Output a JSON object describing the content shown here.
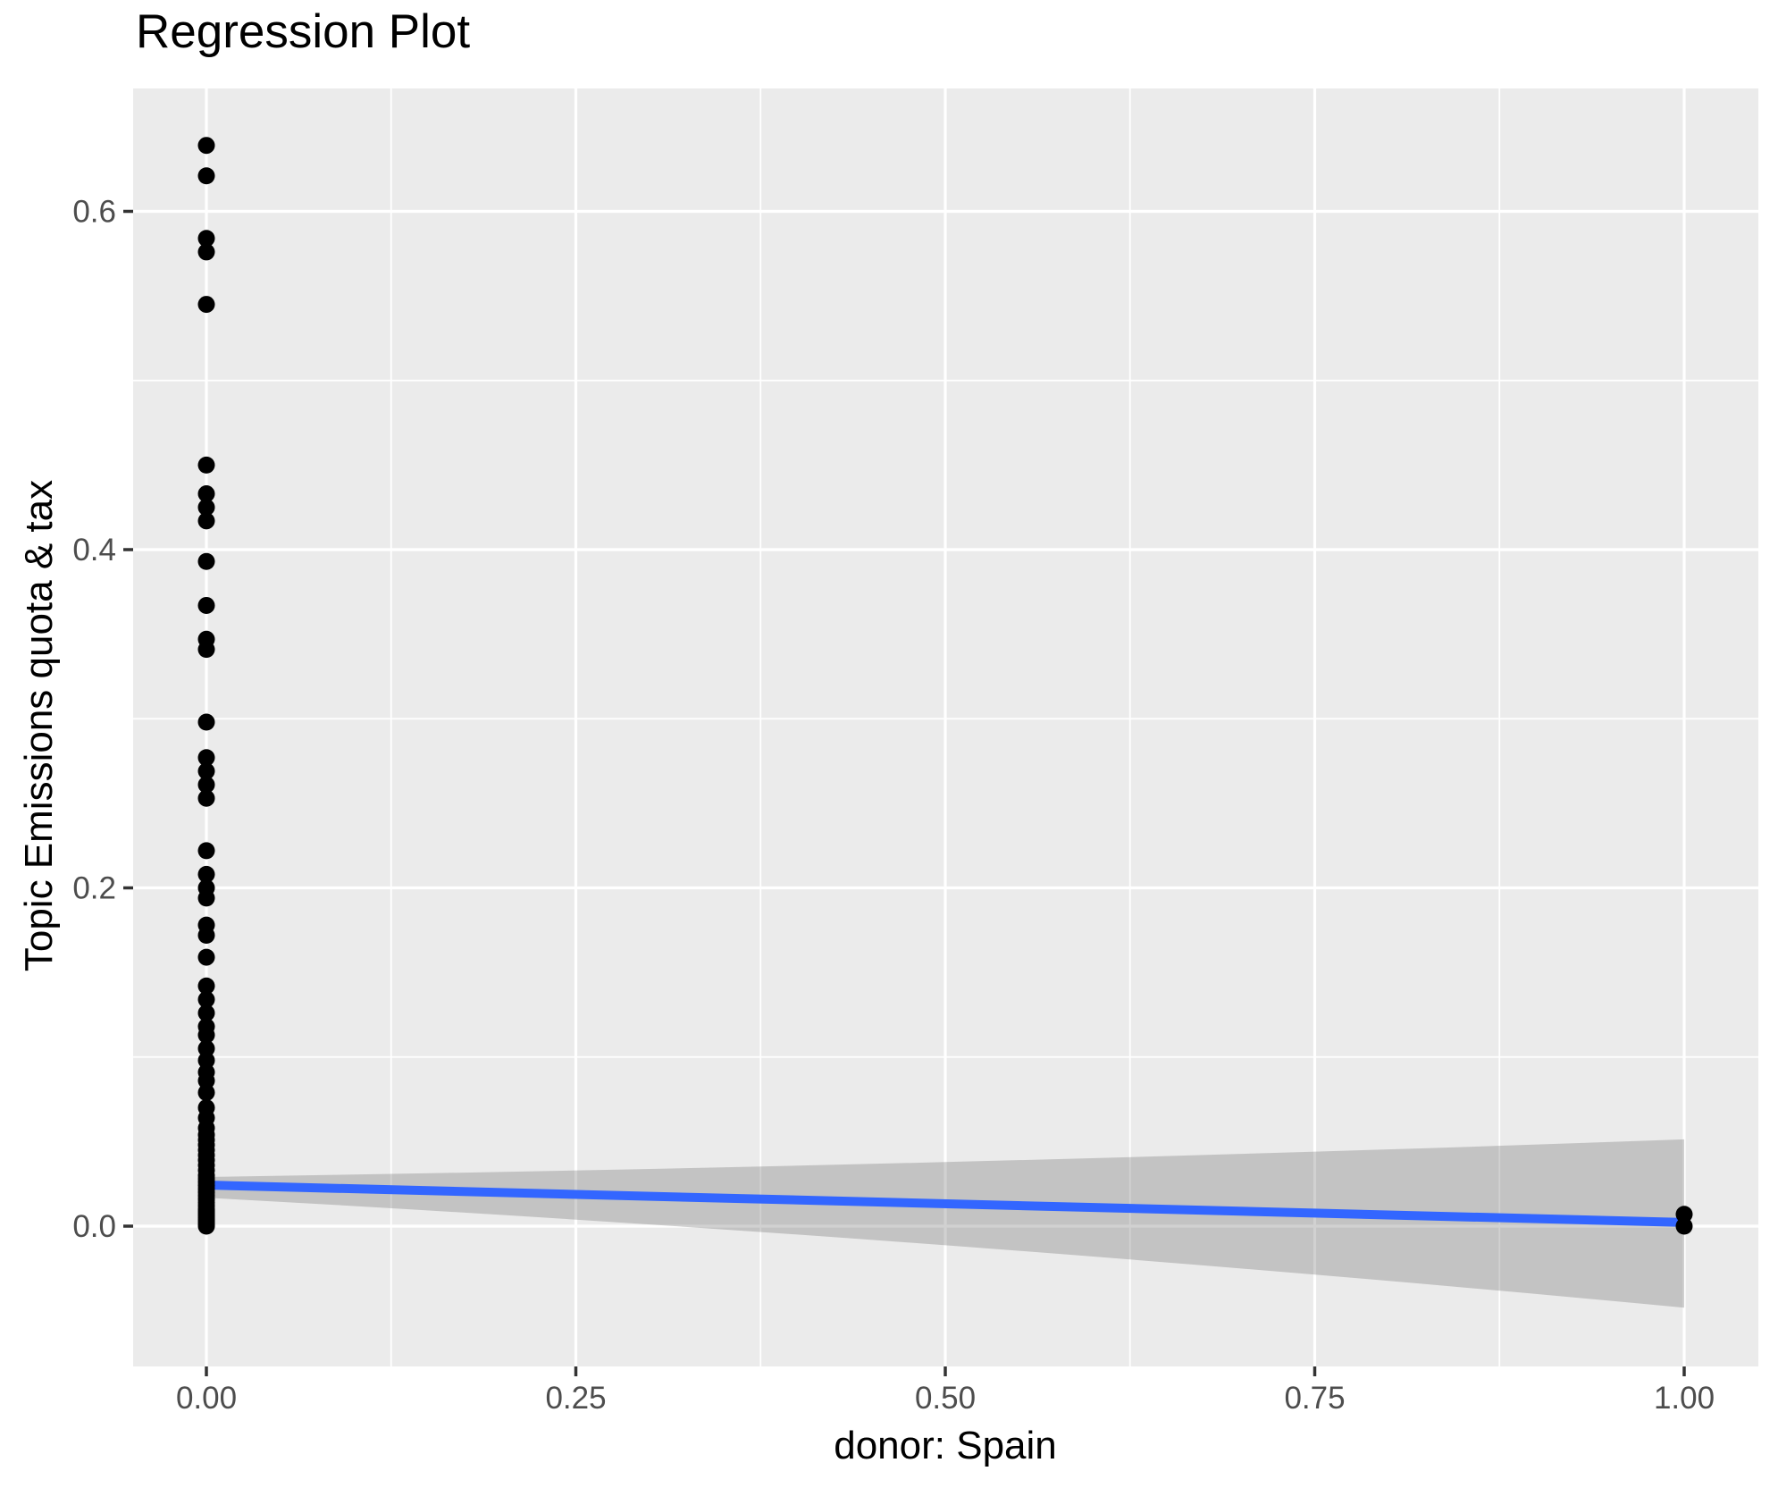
{
  "title": "Regression Plot",
  "chart_data": {
    "type": "scatter",
    "title": "Regression Plot",
    "xlabel": "donor: Spain",
    "ylabel": "Topic Emissions quota & tax",
    "xlim": [
      -0.05,
      1.05
    ],
    "ylim": [
      -0.083,
      0.673
    ],
    "grid": true,
    "legend": "none",
    "x_ticks": [
      0.0,
      0.25,
      0.5,
      0.75,
      1.0
    ],
    "x_tick_labels": [
      "0.00",
      "0.25",
      "0.50",
      "0.75",
      "1.00"
    ],
    "y_ticks": [
      0.0,
      0.2,
      0.4,
      0.6
    ],
    "y_tick_labels": [
      "0.0",
      "0.2",
      "0.4",
      "0.6"
    ],
    "x_minor_ticks": [
      0.125,
      0.375,
      0.625,
      0.875
    ],
    "y_minor_ticks": [
      0.1,
      0.3,
      0.5
    ],
    "series": [
      {
        "name": "observations at donor=0",
        "x": 0,
        "y_values": [
          0.639,
          0.621,
          0.584,
          0.576,
          0.545,
          0.45,
          0.433,
          0.425,
          0.417,
          0.393,
          0.367,
          0.347,
          0.341,
          0.298,
          0.277,
          0.269,
          0.261,
          0.253,
          0.222,
          0.208,
          0.2,
          0.194,
          0.178,
          0.172,
          0.159,
          0.142,
          0.134,
          0.126,
          0.118,
          0.113,
          0.105,
          0.098,
          0.091,
          0.086,
          0.079,
          0.07,
          0.064,
          0.058,
          0.054,
          0.051,
          0.048,
          0.045,
          0.042,
          0.039,
          0.036,
          0.033,
          0.03,
          0.028,
          0.026,
          0.024,
          0.022,
          0.02,
          0.018,
          0.016,
          0.014,
          0.012,
          0.01,
          0.009,
          0.008,
          0.007,
          0.006,
          0.005,
          0.004,
          0.003,
          0.002,
          0.001,
          0.0
        ]
      },
      {
        "name": "observations at donor=1",
        "x": 1,
        "y_values": [
          0.007,
          0.0
        ]
      }
    ],
    "regression_line": {
      "x": [
        0,
        1
      ],
      "y": [
        0.0243,
        0.0022
      ]
    },
    "confidence_band": {
      "x": [
        0,
        0.5,
        1
      ],
      "top": [
        0.0291,
        0.0379,
        0.0513
      ],
      "bottom": [
        0.0168,
        -0.0113,
        -0.0482
      ]
    },
    "colors": {
      "panel_background": "#EBEBEB",
      "gridline": "#FFFFFF",
      "point": "#000000",
      "regression_line": "#3366FF",
      "confidence_band": "rgba(102,102,102,0.30)",
      "tick_mark": "#333333",
      "tick_label": "#4D4D4D",
      "title_text": "#000000"
    }
  }
}
